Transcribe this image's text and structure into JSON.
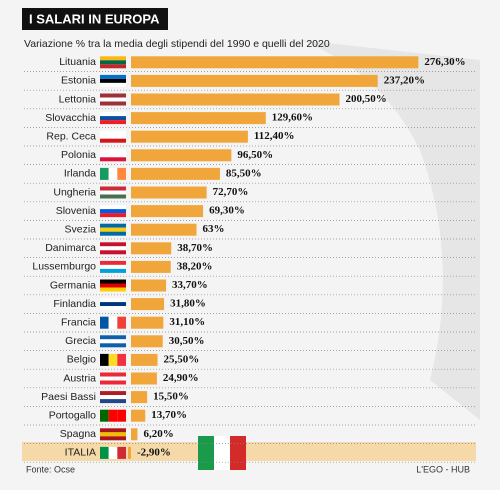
{
  "chart_data": {
    "type": "bar",
    "orientation": "horizontal",
    "title": "I SALARI IN EUROPA",
    "subtitle": "Variazione % tra la media degli stipendi del 1990 e quelli del  2020",
    "source": "Fonte: Ocse",
    "credit": "L'EGO - HUB",
    "color": "#f0a63a",
    "categories": [
      "Lituania",
      "Estonia",
      "Lettonia",
      "Slovacchia",
      "Rep. Ceca",
      "Polonia",
      "Irlanda",
      "Ungheria",
      "Slovenia",
      "Svezia",
      "Danimarca",
      "Lussemburgo",
      "Germania",
      "Finlandia",
      "Francia",
      "Grecia",
      "Belgio",
      "Austria",
      "Paesi Bassi",
      "Portogallo",
      "Spagna",
      "ITALIA"
    ],
    "values": [
      276.3,
      237.2,
      200.5,
      129.6,
      112.4,
      96.5,
      85.5,
      72.7,
      69.3,
      63,
      38.7,
      38.2,
      33.7,
      31.8,
      31.1,
      30.5,
      25.5,
      24.9,
      15.5,
      13.7,
      6.2,
      -2.9
    ],
    "value_labels": [
      "276,30%",
      "237,20%",
      "200,50%",
      "129,60%",
      "112,40%",
      "96,50%",
      "85,50%",
      "72,70%",
      "69,30%",
      "63%",
      "38,70%",
      "38,20%",
      "33,70%",
      "31,80%",
      "31,10%",
      "30,50%",
      "25,50%",
      "24,90%",
      "15,50%",
      "13,70%",
      "6,20%",
      "-2,90%"
    ]
  }
}
